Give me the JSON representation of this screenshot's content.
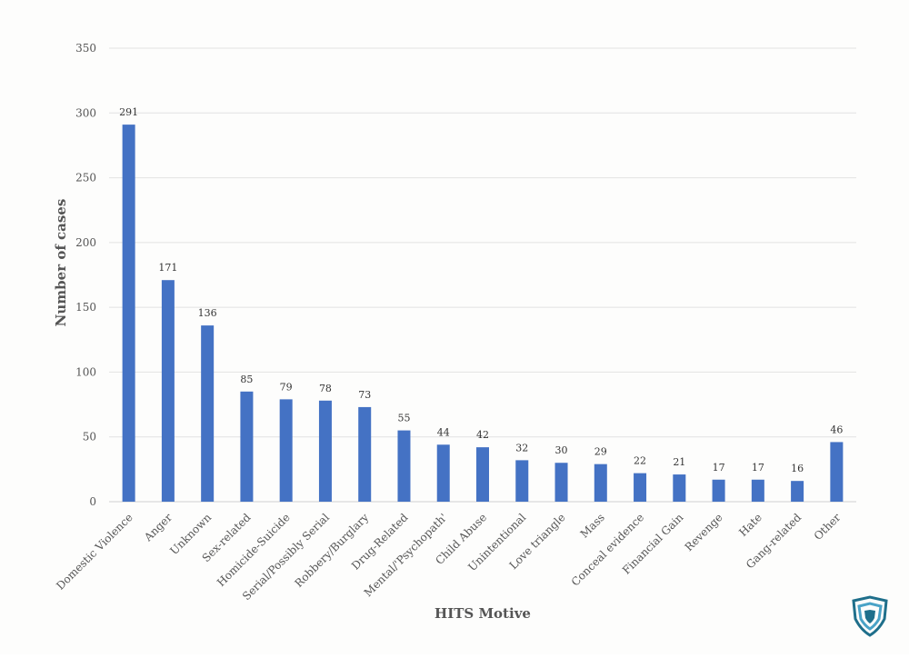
{
  "chart_data": {
    "type": "bar",
    "xlabel": "HITS Motive",
    "ylabel": "Number of cases",
    "ylim": [
      0,
      350
    ],
    "yticks": [
      0,
      50,
      100,
      150,
      200,
      250,
      300,
      350
    ],
    "grid": true,
    "bar_color": "#4472c4",
    "categories": [
      "Domestic Violence",
      "Anger",
      "Unknown",
      "Sex-related",
      "Homicide-Suicide",
      "Serial/Possibly Serial",
      "Robbery/Burglary",
      "Drug-Related",
      "Mental/'Psychopath'",
      "Child Abuse",
      "Unintentional",
      "Love triangle",
      "Mass",
      "Conceal evidence",
      "Financial Gain",
      "Revenge",
      "Hate",
      "Gang-related",
      "Other"
    ],
    "values": [
      291,
      171,
      136,
      85,
      79,
      78,
      73,
      55,
      44,
      42,
      32,
      30,
      29,
      22,
      21,
      17,
      17,
      16,
      46
    ],
    "show_data_labels": true
  },
  "logo": {
    "icon": "shield-logo-icon",
    "colors": [
      "#1f6f8b",
      "#4aa3c7"
    ]
  }
}
